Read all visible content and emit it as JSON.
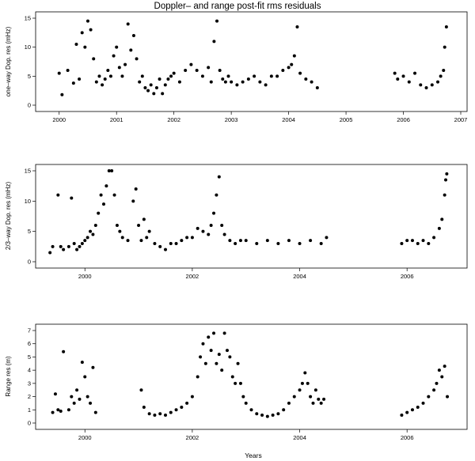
{
  "figure": {
    "title": "Doppler– and range post-fit rms residuals",
    "xlabel": "Years"
  },
  "chart_data": [
    {
      "type": "scatter",
      "ylabel": "one–way Dop. res (mHz)",
      "xlim": [
        1999.7,
        2007.0
      ],
      "ylim": [
        0,
        15
      ],
      "xticks": [
        2000,
        2001,
        2002,
        2003,
        2004,
        2005,
        2006,
        2007
      ],
      "yticks": [
        0,
        5,
        10,
        15
      ],
      "x": [
        2000.0,
        2000.05,
        2000.15,
        2000.25,
        2000.3,
        2000.35,
        2000.4,
        2000.45,
        2000.5,
        2000.55,
        2000.6,
        2000.65,
        2000.7,
        2000.75,
        2000.8,
        2000.85,
        2000.9,
        2000.95,
        2001.0,
        2001.05,
        2001.1,
        2001.15,
        2001.2,
        2001.25,
        2001.3,
        2001.35,
        2001.4,
        2001.45,
        2001.5,
        2001.55,
        2001.6,
        2001.65,
        2001.7,
        2001.75,
        2001.8,
        2001.85,
        2001.9,
        2001.95,
        2002.0,
        2002.1,
        2002.2,
        2002.3,
        2002.4,
        2002.5,
        2002.6,
        2002.65,
        2002.7,
        2002.75,
        2002.8,
        2002.85,
        2002.9,
        2002.95,
        2003.0,
        2003.1,
        2003.2,
        2003.3,
        2003.4,
        2003.5,
        2003.6,
        2003.7,
        2003.8,
        2003.9,
        2004.0,
        2004.05,
        2004.1,
        2004.15,
        2004.2,
        2004.3,
        2004.4,
        2004.5,
        2005.85,
        2005.9,
        2006.0,
        2006.1,
        2006.2,
        2006.3,
        2006.4,
        2006.5,
        2006.6,
        2006.65,
        2006.7,
        2006.72,
        2006.75
      ],
      "y": [
        5.5,
        1.8,
        6.0,
        3.8,
        10.5,
        4.5,
        12.5,
        10.0,
        14.5,
        13.0,
        8.0,
        4.0,
        5.0,
        3.5,
        4.5,
        6.0,
        5.0,
        8.5,
        10.0,
        6.5,
        5.0,
        7.0,
        14.0,
        9.5,
        12.0,
        8.0,
        4.0,
        5.0,
        3.0,
        2.5,
        3.5,
        2.0,
        3.0,
        4.5,
        2.0,
        3.5,
        4.5,
        5.0,
        5.5,
        4.0,
        6.0,
        7.0,
        6.0,
        5.0,
        6.5,
        4.0,
        11.0,
        14.5,
        6.0,
        4.5,
        4.0,
        5.0,
        4.0,
        3.5,
        4.0,
        4.5,
        5.0,
        4.0,
        3.5,
        5.0,
        5.0,
        6.0,
        6.5,
        7.0,
        8.5,
        13.5,
        5.5,
        4.5,
        4.0,
        3.0,
        5.5,
        4.5,
        5.0,
        4.0,
        5.5,
        3.5,
        3.0,
        3.5,
        4.0,
        5.0,
        6.0,
        10.0,
        13.5
      ]
    },
    {
      "type": "scatter",
      "ylabel": "2/3–way Dop. res (mHz)",
      "xlim": [
        1999.2,
        2007.0
      ],
      "ylim": [
        0,
        15
      ],
      "xticks": [
        2000,
        2002,
        2004,
        2006
      ],
      "yticks": [
        0,
        5,
        10,
        15
      ],
      "x": [
        1999.35,
        1999.4,
        1999.5,
        1999.55,
        1999.6,
        1999.7,
        1999.75,
        1999.8,
        1999.85,
        1999.9,
        1999.95,
        2000.0,
        2000.05,
        2000.1,
        2000.15,
        2000.2,
        2000.25,
        2000.3,
        2000.35,
        2000.4,
        2000.45,
        2000.5,
        2000.55,
        2000.6,
        2000.65,
        2000.7,
        2000.8,
        2000.9,
        2000.95,
        2001.0,
        2001.05,
        2001.1,
        2001.15,
        2001.2,
        2001.3,
        2001.4,
        2001.5,
        2001.6,
        2001.7,
        2001.8,
        2001.9,
        2002.0,
        2002.1,
        2002.2,
        2002.3,
        2002.35,
        2002.4,
        2002.45,
        2002.5,
        2002.55,
        2002.6,
        2002.7,
        2002.8,
        2002.9,
        2003.0,
        2003.2,
        2003.4,
        2003.6,
        2003.8,
        2004.0,
        2004.2,
        2004.4,
        2004.5,
        2005.9,
        2006.0,
        2006.1,
        2006.2,
        2006.3,
        2006.4,
        2006.5,
        2006.6,
        2006.65,
        2006.7,
        2006.72,
        2006.74
      ],
      "y": [
        1.5,
        2.5,
        11.0,
        2.5,
        2.0,
        2.5,
        10.5,
        3.0,
        2.0,
        2.5,
        3.0,
        3.5,
        4.0,
        5.0,
        4.5,
        6.0,
        8.0,
        11.0,
        9.5,
        12.5,
        15.0,
        15.0,
        11.0,
        6.0,
        5.0,
        4.0,
        3.5,
        10.0,
        12.0,
        6.0,
        3.5,
        7.0,
        4.0,
        5.0,
        3.0,
        2.5,
        2.0,
        3.0,
        3.0,
        3.5,
        4.0,
        4.0,
        5.5,
        5.0,
        4.5,
        6.0,
        8.0,
        11.0,
        14.0,
        6.0,
        4.5,
        3.5,
        3.0,
        3.5,
        3.5,
        3.0,
        3.5,
        3.0,
        3.5,
        3.0,
        3.5,
        3.0,
        4.0,
        3.0,
        3.5,
        3.5,
        3.0,
        3.5,
        3.0,
        4.0,
        5.5,
        7.0,
        11.0,
        13.5,
        14.5
      ]
    },
    {
      "type": "scatter",
      "ylabel": "Range res (m)",
      "xlim": [
        1999.2,
        2007.0
      ],
      "ylim": [
        0,
        7
      ],
      "xticks": [
        2000,
        2002,
        2004,
        2006
      ],
      "yticks": [
        0,
        1,
        2,
        3,
        4,
        5,
        6,
        7
      ],
      "x": [
        1999.4,
        1999.45,
        1999.5,
        1999.55,
        1999.6,
        1999.7,
        1999.75,
        1999.8,
        1999.85,
        1999.9,
        1999.95,
        2000.0,
        2000.05,
        2000.1,
        2000.15,
        2000.2,
        2001.05,
        2001.1,
        2001.2,
        2001.3,
        2001.4,
        2001.5,
        2001.6,
        2001.7,
        2001.8,
        2001.9,
        2002.0,
        2002.1,
        2002.15,
        2002.2,
        2002.25,
        2002.3,
        2002.35,
        2002.4,
        2002.45,
        2002.5,
        2002.55,
        2002.6,
        2002.65,
        2002.7,
        2002.75,
        2002.8,
        2002.85,
        2002.9,
        2002.95,
        2003.0,
        2003.1,
        2003.2,
        2003.3,
        2003.4,
        2003.5,
        2003.6,
        2003.7,
        2003.8,
        2003.9,
        2004.0,
        2004.05,
        2004.1,
        2004.15,
        2004.2,
        2004.25,
        2004.3,
        2004.35,
        2004.4,
        2004.45,
        2005.9,
        2006.0,
        2006.1,
        2006.2,
        2006.3,
        2006.4,
        2006.5,
        2006.55,
        2006.6,
        2006.65,
        2006.7,
        2006.75
      ],
      "y": [
        0.8,
        2.2,
        1.0,
        0.9,
        5.4,
        1.0,
        2.0,
        1.5,
        2.5,
        1.8,
        4.6,
        3.5,
        2.0,
        1.5,
        4.2,
        0.8,
        2.5,
        1.2,
        0.7,
        0.6,
        0.7,
        0.6,
        0.8,
        1.0,
        1.2,
        1.5,
        2.0,
        3.5,
        5.0,
        6.0,
        4.5,
        6.5,
        5.5,
        6.8,
        4.5,
        5.2,
        4.0,
        6.8,
        5.5,
        5.0,
        3.5,
        3.0,
        4.5,
        3.0,
        2.0,
        1.5,
        1.0,
        0.7,
        0.6,
        0.5,
        0.6,
        0.7,
        1.0,
        1.5,
        2.0,
        2.5,
        3.0,
        3.8,
        3.0,
        2.0,
        1.5,
        2.5,
        1.8,
        1.5,
        1.8,
        0.6,
        0.8,
        1.0,
        1.2,
        1.5,
        2.0,
        2.5,
        3.0,
        4.0,
        3.5,
        4.3,
        2.0
      ]
    }
  ]
}
